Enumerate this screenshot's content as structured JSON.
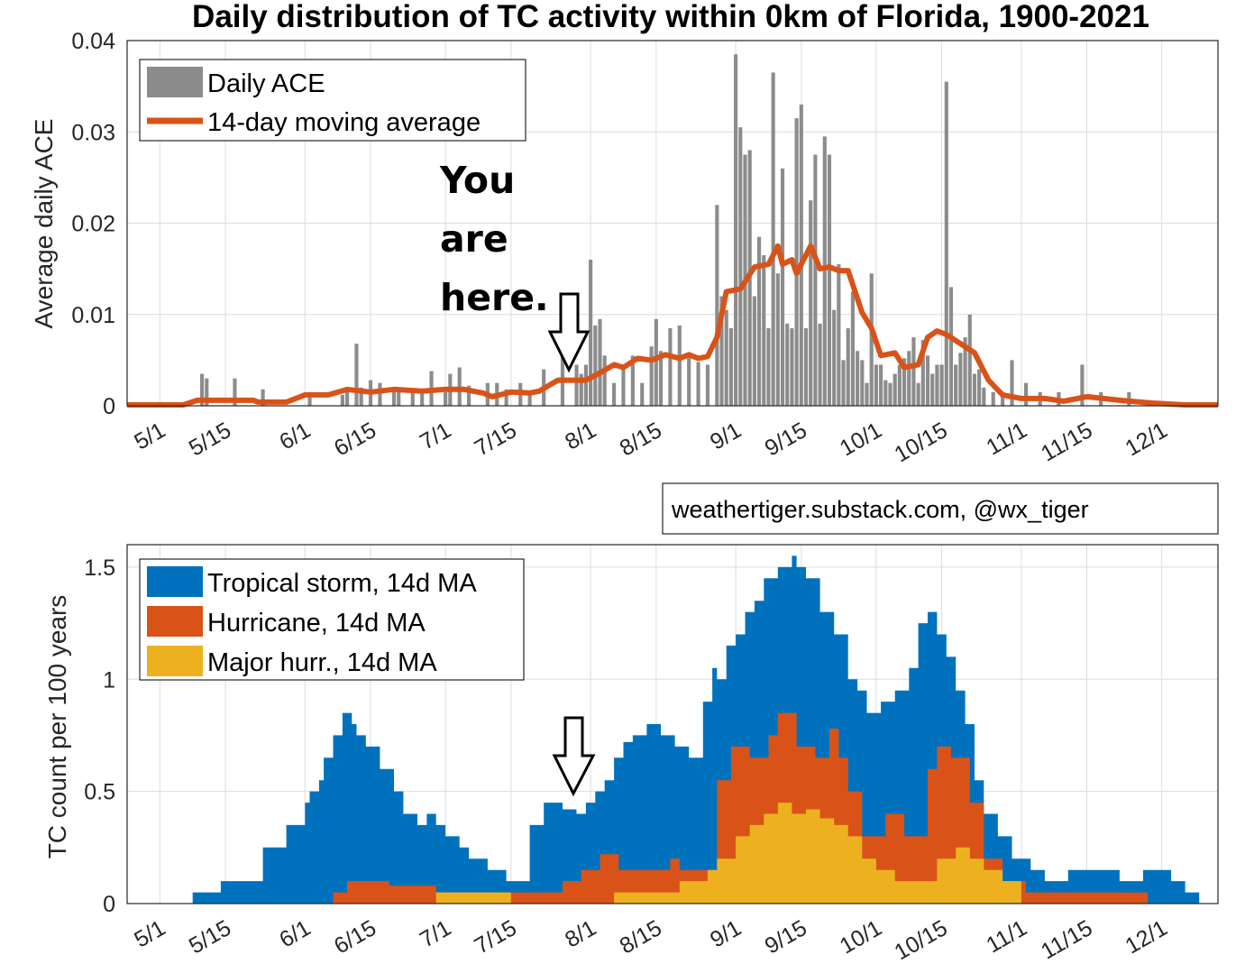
{
  "title": "Daily distribution of TC activity within 0km of Florida, 1900-2021",
  "credit": "weathertiger.substack.com, @wx_tiger",
  "annotation": {
    "lines": [
      "You",
      "are",
      "here."
    ],
    "date": "7/27"
  },
  "colors": {
    "bars": "#8c8c8c",
    "moving_average": "#d95319",
    "tropical_storm": "#0072bd",
    "hurricane": "#d95319",
    "major": "#edb120"
  },
  "chart_data": [
    {
      "type": "bar",
      "xlabel": "",
      "ylabel": "Average daily ACE",
      "ylim": [
        0,
        0.04
      ],
      "yticks": [
        0,
        0.01,
        0.02,
        0.03,
        0.04
      ],
      "ytick_labels": [
        "0",
        "0.01",
        "0.02",
        "0.03",
        "0.04"
      ],
      "xlim": [
        "4/24",
        "12/13"
      ],
      "xticks": [
        "5/1",
        "5/15",
        "6/1",
        "6/15",
        "7/1",
        "7/15",
        "8/1",
        "8/15",
        "9/1",
        "9/15",
        "10/1",
        "10/15",
        "11/1",
        "11/15",
        "12/1"
      ],
      "grid": true,
      "legend_position": "top-left",
      "series": [
        {
          "name": "Daily ACE",
          "type": "bar",
          "x": [
            "5/10",
            "5/11",
            "5/17",
            "5/23",
            "6/2",
            "6/9",
            "6/10",
            "6/12",
            "6/13",
            "6/15",
            "6/17",
            "6/20",
            "6/21",
            "6/24",
            "6/26",
            "6/28",
            "7/1",
            "7/2",
            "7/4",
            "7/6",
            "7/10",
            "7/12",
            "7/14",
            "7/17",
            "7/19",
            "7/22",
            "7/26",
            "7/29",
            "7/30",
            "7/31",
            "8/1",
            "8/2",
            "8/3",
            "8/4",
            "8/6",
            "8/8",
            "8/10",
            "8/12",
            "8/14",
            "8/15",
            "8/16",
            "8/18",
            "8/20",
            "8/22",
            "8/24",
            "8/26",
            "8/28",
            "8/29",
            "8/30",
            "8/31",
            "9/1",
            "9/2",
            "9/3",
            "9/4",
            "9/5",
            "9/6",
            "9/7",
            "9/8",
            "9/9",
            "9/10",
            "9/11",
            "9/12",
            "9/13",
            "9/14",
            "9/15",
            "9/16",
            "9/17",
            "9/18",
            "9/19",
            "9/20",
            "9/21",
            "9/22",
            "9/23",
            "9/24",
            "9/25",
            "9/26",
            "9/27",
            "9/28",
            "9/29",
            "9/30",
            "10/1",
            "10/2",
            "10/3",
            "10/4",
            "10/5",
            "10/6",
            "10/7",
            "10/8",
            "10/9",
            "10/10",
            "10/11",
            "10/12",
            "10/13",
            "10/14",
            "10/15",
            "10/16",
            "10/17",
            "10/18",
            "10/19",
            "10/20",
            "10/21",
            "10/22",
            "10/23",
            "10/24",
            "10/26",
            "10/28",
            "10/30",
            "11/2",
            "11/5",
            "11/9",
            "11/14",
            "11/18",
            "11/24"
          ],
          "values": [
            0.0035,
            0.003,
            0.003,
            0.0018,
            0.0015,
            0.0012,
            0.0015,
            0.0068,
            0.002,
            0.0028,
            0.0025,
            0.002,
            0.0015,
            0.0015,
            0.0018,
            0.0038,
            0.0015,
            0.0035,
            0.0042,
            0.0022,
            0.0025,
            0.0025,
            0.0018,
            0.0025,
            0.0015,
            0.004,
            0.0082,
            0.0045,
            0.0035,
            0.0045,
            0.016,
            0.0088,
            0.0095,
            0.0055,
            0.0025,
            0.0045,
            0.0055,
            0.0025,
            0.0065,
            0.0095,
            0.006,
            0.0085,
            0.0088,
            0.0055,
            0.0048,
            0.0045,
            0.022,
            0.012,
            0.0105,
            0.0085,
            0.0385,
            0.0305,
            0.0275,
            0.028,
            0.012,
            0.0185,
            0.0165,
            0.0085,
            0.0365,
            0.0145,
            0.026,
            0.009,
            0.0085,
            0.0315,
            0.033,
            0.0085,
            0.0225,
            0.0275,
            0.009,
            0.0295,
            0.0275,
            0.0105,
            0.0155,
            0.005,
            0.0085,
            0.0125,
            0.006,
            0.005,
            0.0025,
            0.0145,
            0.0045,
            0.0045,
            0.0028,
            0.0025,
            0.0035,
            0.0045,
            0.0052,
            0.006,
            0.0075,
            0.0025,
            0.0072,
            0.0055,
            0.0035,
            0.0045,
            0.0045,
            0.0355,
            0.013,
            0.0045,
            0.0058,
            0.0075,
            0.01,
            0.0035,
            0.004,
            0.002,
            0.0015,
            0.0015,
            0.005,
            0.0025,
            0.0015,
            0.0015,
            0.0045,
            0.0015,
            0.0015
          ]
        },
        {
          "name": "14-day moving average",
          "type": "line",
          "x": [
            "4/24",
            "5/6",
            "5/9",
            "5/21",
            "5/22",
            "5/28",
            "6/1",
            "6/6",
            "6/10",
            "6/15",
            "6/20",
            "6/26",
            "7/1",
            "7/5",
            "7/9",
            "7/11",
            "7/15",
            "7/19",
            "7/21",
            "7/25",
            "7/27",
            "7/31",
            "8/3",
            "8/6",
            "8/8",
            "8/11",
            "8/14",
            "8/17",
            "8/20",
            "8/22",
            "8/24",
            "8/26",
            "8/28",
            "8/30",
            "9/2",
            "9/5",
            "9/8",
            "9/10",
            "9/11",
            "9/13",
            "9/14",
            "9/16",
            "9/17",
            "9/19",
            "9/21",
            "9/23",
            "9/25",
            "9/28",
            "9/30",
            "10/2",
            "10/5",
            "10/7",
            "10/10",
            "10/12",
            "10/14",
            "10/16",
            "10/19",
            "10/22",
            "10/25",
            "10/28",
            "11/1",
            "11/6",
            "11/10",
            "11/15",
            "11/22",
            "11/29",
            "12/6",
            "12/13"
          ],
          "values": [
            0.0001,
            0.0001,
            0.0006,
            0.0006,
            0.0004,
            0.0004,
            0.0012,
            0.0012,
            0.0018,
            0.0015,
            0.0018,
            0.0016,
            0.0018,
            0.0018,
            0.0014,
            0.001,
            0.0015,
            0.0014,
            0.0016,
            0.0028,
            0.0028,
            0.0028,
            0.0036,
            0.0045,
            0.0042,
            0.0052,
            0.005,
            0.0056,
            0.0052,
            0.0056,
            0.0052,
            0.0054,
            0.0075,
            0.0125,
            0.0128,
            0.0152,
            0.0155,
            0.0175,
            0.0155,
            0.016,
            0.0145,
            0.0165,
            0.0175,
            0.015,
            0.0152,
            0.0148,
            0.0148,
            0.0102,
            0.0085,
            0.0055,
            0.0058,
            0.0042,
            0.0045,
            0.0075,
            0.0082,
            0.0078,
            0.0068,
            0.0058,
            0.0028,
            0.0012,
            0.0008,
            0.0008,
            0.0005,
            0.001,
            0.0006,
            0.0003,
            0.0001,
            0.0001
          ]
        }
      ]
    },
    {
      "type": "area",
      "xlabel": "",
      "ylabel": "TC count per 100 years",
      "ylim": [
        0,
        1.6
      ],
      "yticks": [
        0,
        0.5,
        1,
        1.5
      ],
      "ytick_labels": [
        "0",
        "0.5",
        "1",
        "1.5"
      ],
      "xlim": [
        "4/24",
        "12/13"
      ],
      "xticks": [
        "5/1",
        "5/15",
        "6/1",
        "6/15",
        "7/1",
        "7/15",
        "8/1",
        "8/15",
        "9/1",
        "9/15",
        "10/1",
        "10/15",
        "11/1",
        "11/15",
        "12/1"
      ],
      "grid": true,
      "legend_position": "top-left",
      "series": [
        {
          "name": "Tropical storm, 14d MA",
          "x": [
            "5/8",
            "5/14",
            "5/16",
            "5/23",
            "5/28",
            "6/1",
            "6/2",
            "6/4",
            "6/5",
            "6/7",
            "6/9",
            "6/11",
            "6/12",
            "6/14",
            "6/17",
            "6/20",
            "6/22",
            "6/25",
            "6/27",
            "6/29",
            "7/1",
            "7/4",
            "7/6",
            "7/10",
            "7/14",
            "7/19",
            "7/22",
            "7/26",
            "7/29",
            "7/31",
            "8/2",
            "8/4",
            "8/6",
            "8/8",
            "8/10",
            "8/13",
            "8/16",
            "8/19",
            "8/22",
            "8/25",
            "8/27",
            "8/28",
            "8/30",
            "9/1",
            "9/3",
            "9/5",
            "9/7",
            "9/10",
            "9/13",
            "9/14",
            "9/16",
            "9/19",
            "9/22",
            "9/25",
            "9/27",
            "9/29",
            "10/2",
            "10/5",
            "10/8",
            "10/10",
            "10/12",
            "10/14",
            "10/16",
            "10/18",
            "10/20",
            "10/22",
            "10/24",
            "10/27",
            "10/30",
            "11/3",
            "11/6",
            "11/11",
            "11/15",
            "11/22",
            "11/27",
            "12/3",
            "12/6"
          ],
          "values": [
            0.05,
            0.1,
            0.1,
            0.25,
            0.35,
            0.45,
            0.5,
            0.55,
            0.65,
            0.75,
            0.85,
            0.8,
            0.75,
            0.7,
            0.6,
            0.5,
            0.4,
            0.35,
            0.4,
            0.35,
            0.3,
            0.25,
            0.2,
            0.15,
            0.1,
            0.35,
            0.45,
            0.42,
            0.4,
            0.45,
            0.5,
            0.55,
            0.65,
            0.72,
            0.75,
            0.8,
            0.75,
            0.7,
            0.65,
            0.9,
            1.05,
            1.0,
            1.15,
            1.2,
            1.3,
            1.35,
            1.45,
            1.5,
            1.55,
            1.5,
            1.45,
            1.3,
            1.2,
            1.0,
            0.95,
            0.85,
            0.9,
            0.95,
            1.05,
            1.25,
            1.3,
            1.2,
            1.1,
            0.95,
            0.8,
            0.55,
            0.4,
            0.3,
            0.2,
            0.15,
            0.1,
            0.15,
            0.15,
            0.1,
            0.15,
            0.1,
            0.05
          ]
        },
        {
          "name": "Hurricane, 14d MA",
          "x": [
            "6/7",
            "6/10",
            "6/19",
            "6/29",
            "7/14",
            "7/26",
            "7/30",
            "8/3",
            "8/7",
            "8/10",
            "8/18",
            "8/20",
            "8/28",
            "8/31",
            "9/4",
            "9/8",
            "9/10",
            "9/14",
            "9/18",
            "9/21",
            "9/23",
            "9/25",
            "9/28",
            "10/3",
            "10/7",
            "10/12",
            "10/14",
            "10/17",
            "10/21",
            "10/24",
            "10/28",
            "11/2",
            "11/15",
            "11/25"
          ],
          "values": [
            0.05,
            0.1,
            0.08,
            0.05,
            0.05,
            0.1,
            0.15,
            0.22,
            0.15,
            0.15,
            0.2,
            0.15,
            0.55,
            0.7,
            0.65,
            0.75,
            0.85,
            0.7,
            0.65,
            0.78,
            0.65,
            0.5,
            0.3,
            0.4,
            0.3,
            0.6,
            0.7,
            0.65,
            0.45,
            0.2,
            0.1,
            0.05,
            0.05,
            0.05
          ]
        },
        {
          "name": "Major hurr., 14d MA",
          "x": [
            "6/29",
            "7/10",
            "7/15",
            "8/6",
            "8/14",
            "8/20",
            "8/26",
            "8/28",
            "9/1",
            "9/4",
            "9/7",
            "9/10",
            "9/13",
            "9/16",
            "9/19",
            "9/22",
            "9/25",
            "9/28",
            "10/1",
            "10/5",
            "10/10",
            "10/14",
            "10/18",
            "10/21",
            "10/24",
            "10/28",
            "11/1"
          ],
          "values": [
            0.05,
            0.05,
            0.0,
            0.05,
            0.05,
            0.1,
            0.15,
            0.2,
            0.3,
            0.35,
            0.4,
            0.45,
            0.4,
            0.42,
            0.38,
            0.35,
            0.3,
            0.2,
            0.15,
            0.1,
            0.1,
            0.2,
            0.25,
            0.2,
            0.15,
            0.1,
            0.0
          ]
        }
      ]
    }
  ]
}
